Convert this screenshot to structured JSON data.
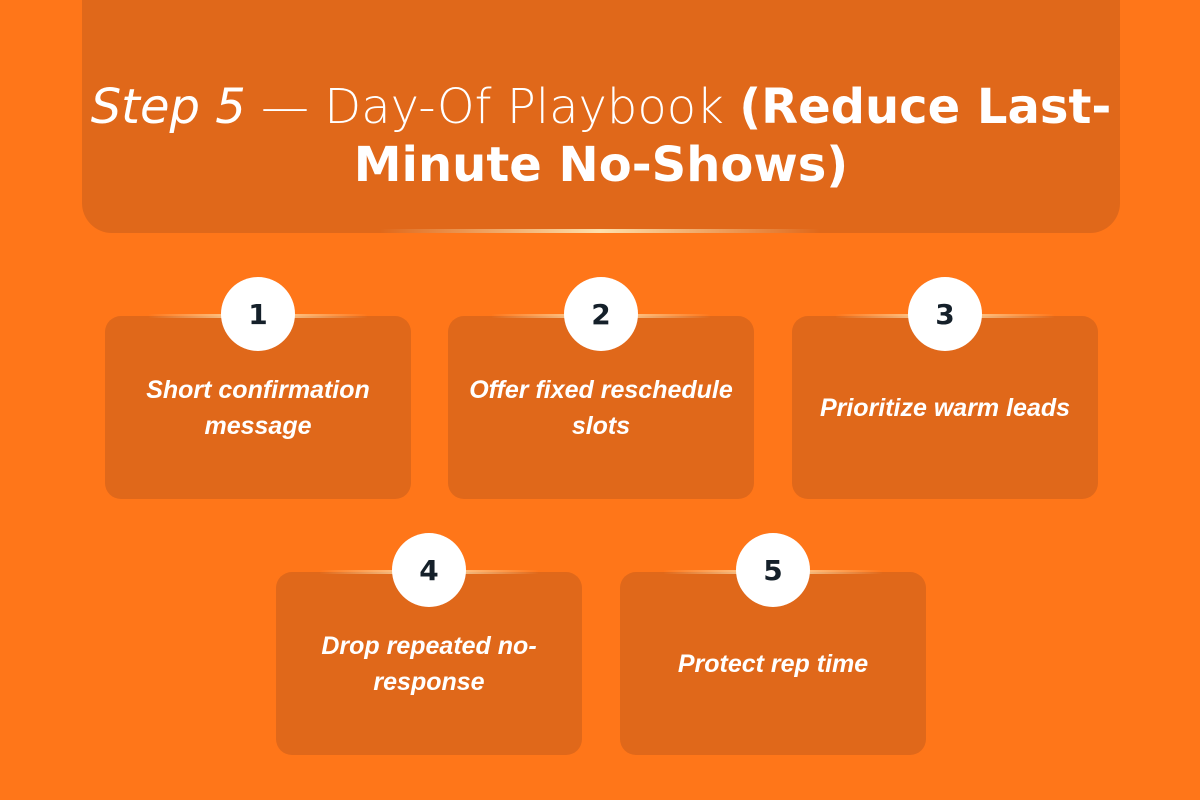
{
  "title": {
    "part_italic": "Step 5",
    "part_light": " — Day-Of Playbook ",
    "part_bold": "(Reduce Last-Minute No-Shows)"
  },
  "steps": [
    {
      "number": "1",
      "label": "Short confirmation message"
    },
    {
      "number": "2",
      "label": "Offer fixed reschedule slots"
    },
    {
      "number": "3",
      "label": "Prioritize warm leads"
    },
    {
      "number": "4",
      "label": "Drop repeated no-response"
    },
    {
      "number": "5",
      "label": "Protect rep time"
    }
  ],
  "colors": {
    "background": "#FF7619",
    "panel": "#E0681A",
    "badge": "#FFFFFF",
    "badge_text": "#15202A"
  }
}
